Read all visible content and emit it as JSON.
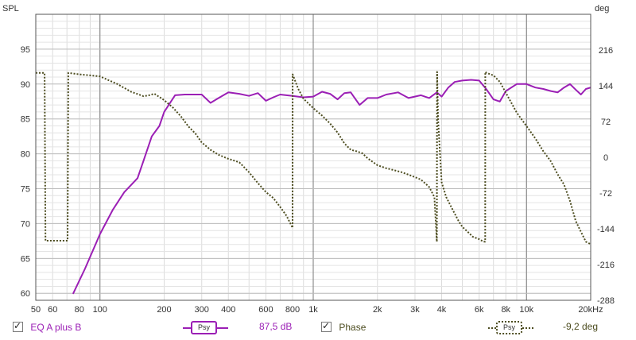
{
  "chart_data": {
    "type": "line",
    "x_scale": "log",
    "xlim": [
      50,
      20000
    ],
    "ylim_left": [
      59,
      100
    ],
    "ylim_right": [
      -288,
      288
    ],
    "left_axis_label": "SPL",
    "right_axis_label": "deg",
    "x_ticks": [
      {
        "v": 50,
        "t": "50"
      },
      {
        "v": 60,
        "t": "60"
      },
      {
        "v": 80,
        "t": "80"
      },
      {
        "v": 100,
        "t": "100"
      },
      {
        "v": 200,
        "t": "200"
      },
      {
        "v": 300,
        "t": "300"
      },
      {
        "v": 400,
        "t": "400"
      },
      {
        "v": 600,
        "t": "600"
      },
      {
        "v": 800,
        "t": "800"
      },
      {
        "v": 1000,
        "t": "1k"
      },
      {
        "v": 2000,
        "t": "2k"
      },
      {
        "v": 3000,
        "t": "3k"
      },
      {
        "v": 4000,
        "t": "4k"
      },
      {
        "v": 6000,
        "t": "6k"
      },
      {
        "v": 8000,
        "t": "8k"
      },
      {
        "v": 10000,
        "t": "10k"
      },
      {
        "v": 20000,
        "t": "20kHz"
      }
    ],
    "y_ticks_left": [
      60,
      65,
      70,
      75,
      80,
      85,
      90,
      95
    ],
    "y_ticks_right": [
      216,
      144,
      72,
      0,
      -72,
      -144,
      -216,
      -288
    ],
    "grid": true,
    "series": [
      {
        "name": "EQ A plus B",
        "axis": "left",
        "color": "#9b1fb5",
        "style": "solid",
        "x": [
          75,
          85,
          100,
          115,
          130,
          150,
          160,
          175,
          190,
          200,
          225,
          250,
          270,
          300,
          330,
          360,
          400,
          450,
          500,
          550,
          600,
          650,
          700,
          800,
          900,
          1000,
          1100,
          1200,
          1300,
          1400,
          1500,
          1650,
          1800,
          2000,
          2200,
          2500,
          2800,
          3200,
          3500,
          3800,
          4000,
          4300,
          4600,
          5000,
          5500,
          6000,
          6500,
          7000,
          7500,
          8000,
          9000,
          10000,
          11000,
          12000,
          13000,
          14000,
          15000,
          16000,
          17000,
          18000,
          19000,
          20000
        ],
        "y": [
          60,
          63.5,
          68.5,
          72,
          74.5,
          76.5,
          79,
          82.5,
          84,
          86,
          88.4,
          88.5,
          88.5,
          88.5,
          87.3,
          88.0,
          88.8,
          88.6,
          88.3,
          88.7,
          87.6,
          88.1,
          88.5,
          88.3,
          88.1,
          88.2,
          88.9,
          88.6,
          87.8,
          88.7,
          88.8,
          87.0,
          88.0,
          88.0,
          88.5,
          88.8,
          88.0,
          88.4,
          88.0,
          88.8,
          88.2,
          89.5,
          90.3,
          90.5,
          90.6,
          90.5,
          89.2,
          87.8,
          87.5,
          89.0,
          90.0,
          90.0,
          89.5,
          89.3,
          89.0,
          88.8,
          89.5,
          90.0,
          89.2,
          88.5,
          89.3,
          89.5
        ]
      },
      {
        "name": "Phase",
        "axis": "right",
        "color": "#4d4d20",
        "style": "dotted",
        "x": [
          50,
          55,
          55.5,
          70.5,
          71,
          80,
          90,
          100,
          110,
          120,
          140,
          160,
          170,
          180,
          200,
          220,
          240,
          260,
          280,
          300,
          330,
          360,
          400,
          450,
          500,
          550,
          600,
          650,
          700,
          750,
          800,
          800.5,
          850,
          900,
          1000,
          1100,
          1200,
          1300,
          1400,
          1500,
          1600,
          1700,
          1800,
          2000,
          2200,
          2400,
          2600,
          2800,
          3000,
          3200,
          3400,
          3500,
          3700,
          3800,
          3810,
          3850,
          4000,
          4200,
          4500,
          4800,
          5000,
          5300,
          5600,
          6000,
          6300,
          6400,
          6410,
          6500,
          7000,
          7500,
          8000,
          9000,
          10000,
          11000,
          12000,
          13000,
          14000,
          15000,
          16000,
          17000,
          18000,
          19000,
          20000
        ],
        "y": [
          170,
          170,
          -168,
          -168,
          170,
          167,
          165,
          163,
          155,
          148,
          132,
          123,
          125,
          128,
          115,
          100,
          82,
          62,
          48,
          30,
          15,
          5,
          -3,
          -10,
          -30,
          -52,
          -70,
          -82,
          -100,
          -118,
          -142,
          167,
          138,
          118,
          99,
          84,
          68,
          50,
          28,
          15,
          12,
          8,
          -2,
          -16,
          -22,
          -26,
          -30,
          -35,
          -40,
          -45,
          -55,
          -60,
          -80,
          -170,
          172,
          78,
          -50,
          -80,
          -105,
          -128,
          -140,
          -150,
          -160,
          -165,
          -170,
          -170,
          172,
          170,
          165,
          152,
          130,
          90,
          63,
          38,
          12,
          -8,
          -34,
          -55,
          -88,
          -128,
          -150,
          -170,
          -175
        ]
      }
    ]
  },
  "legend": {
    "left_label": "EQ A plus B",
    "left_tag": "Psy",
    "left_value": "87,5 dB",
    "right_label": "Phase",
    "right_tag": "Psy",
    "right_value": "-9,2 deg"
  }
}
